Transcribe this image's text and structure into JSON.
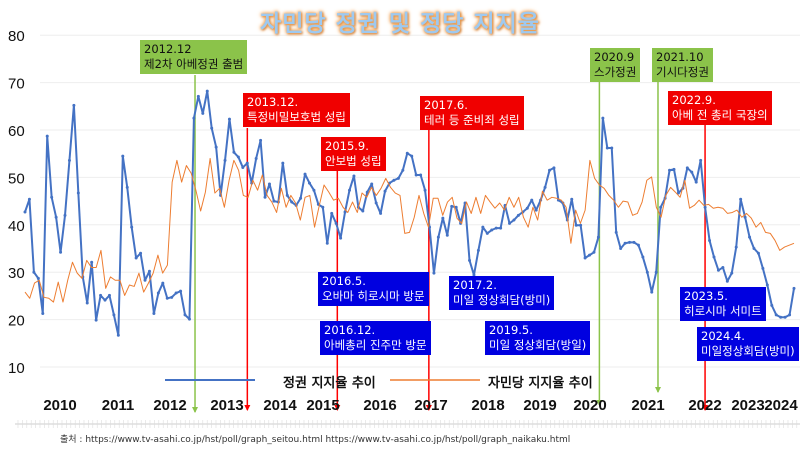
{
  "chart_data": {
    "type": "line",
    "title": "자민당 정권 및 정당 지지율",
    "ylim": [
      10,
      80
    ],
    "yticks": [
      10,
      20,
      30,
      40,
      50,
      60,
      70,
      80
    ],
    "year_labels": [
      "2010",
      "2011",
      "2012",
      "2013",
      "2014",
      "2015",
      "2016",
      "2017",
      "2018",
      "2019",
      "2020",
      "2021",
      "2022",
      "2023",
      "2024"
    ],
    "x_range_years": [
      2009.7,
      2024.4
    ],
    "legend": {
      "position": "bottom",
      "entries": [
        "정권 지지율 추이",
        "자민당 지지율 추이"
      ]
    },
    "grid": true,
    "series": [
      {
        "name": "정권 지지율 추이",
        "color": "#4472c4",
        "values": [
          42.7,
          45.4,
          30,
          28.7,
          21.3,
          58.7,
          45.8,
          41.6,
          34.2,
          42,
          53.6,
          65.2,
          46.7,
          29,
          23.5,
          32.1,
          19.9,
          25.1,
          24.1,
          25.1,
          21,
          16.7,
          54.5,
          47.9,
          39.5,
          33,
          34,
          28.3,
          30.2,
          21.3,
          25.6,
          27.7,
          24.5,
          24.7,
          25.6,
          26,
          21,
          20.1,
          62.5,
          67.1,
          63.5,
          68.2,
          60.4,
          56.4,
          46.2,
          53.6,
          62.3,
          55.3,
          54.3,
          52.1,
          53,
          48.8,
          54,
          57.8,
          45.8,
          48.6,
          45,
          44.8,
          53,
          46.2,
          44.8,
          44.1,
          45.6,
          50.7,
          48.8,
          47.3,
          44.3,
          43.7,
          36.1,
          42.4,
          40.3,
          37.2,
          42.7,
          47.3,
          50.3,
          43.7,
          42.9,
          46.9,
          48.6,
          44.6,
          42.4,
          47.1,
          48.8,
          49.4,
          49.8,
          51.5,
          55.1,
          54.5,
          50.5,
          50.5,
          47.3,
          39.5,
          29.8,
          37.4,
          41.4,
          37.8,
          43.9,
          43.7,
          40.3,
          44.6,
          32.5,
          29.4,
          34.6,
          39.5,
          38.2,
          38.9,
          39.3,
          39.3,
          44.1,
          40.3,
          41,
          42,
          42.7,
          43.5,
          45.2,
          43.1,
          45.2,
          47.9,
          51.5,
          52,
          45.2,
          44.6,
          41,
          45.4,
          39.9,
          39.9,
          33,
          33.6,
          34.2,
          37.4,
          62.5,
          56.2,
          56.2,
          38.4,
          35,
          36.1,
          36.3,
          36.3,
          35.7,
          33.2,
          30,
          25.8,
          30,
          43.7,
          45.6,
          51.5,
          51.7,
          46.7,
          47.7,
          52,
          51.1,
          49,
          53.6,
          43.7,
          36.7,
          33.2,
          30.4,
          31,
          28.1,
          29.8,
          35.3,
          45.4,
          41.6,
          37.4,
          35,
          34,
          30.8,
          27.3,
          23,
          21,
          20.5,
          20.5,
          21,
          26.6
        ]
      },
      {
        "name": "자민당 지지율 추이",
        "color": "#ed7d31",
        "values": [
          25.8,
          24.5,
          27.7,
          28.3,
          24.7,
          24.5,
          23.7,
          27.9,
          23.7,
          28.3,
          32.1,
          29.8,
          28.7,
          32.5,
          31,
          31,
          34.6,
          26.6,
          29,
          28.3,
          28.3,
          25.1,
          27.3,
          27,
          29.8,
          25.8,
          27.7,
          29.8,
          33.6,
          29.8,
          31.5,
          49,
          53.6,
          49,
          52.5,
          50.9,
          47.3,
          42.9,
          46.9,
          54,
          46.7,
          47.7,
          43.7,
          49.4,
          53.6,
          51.5,
          46.2,
          45.8,
          49.4,
          47.3,
          50.5,
          46.2,
          44.8,
          42.6,
          47.7,
          43.7,
          46.2,
          44.6,
          41,
          45.8,
          46.2,
          39.5,
          44.1,
          48.4,
          46.9,
          45.2,
          45.6,
          43.7,
          42.6,
          44.8,
          42.6,
          46.7,
          45.8,
          47.9,
          46.2,
          47.7,
          49.8,
          47.9,
          46.7,
          46.2,
          38.2,
          38.4,
          41.6,
          46.2,
          42.4,
          39.5,
          45.6,
          45.6,
          42,
          44.8,
          45.8,
          41.4,
          40.3,
          44.8,
          42.4,
          45.8,
          42.4,
          46.2,
          44.8,
          43.5,
          44.6,
          43.1,
          45.8,
          43.7,
          45.8,
          41.6,
          39.5,
          43.7,
          41,
          47.1,
          45.2,
          45.8,
          45.6,
          45.2,
          43.7,
          36.1,
          43.1,
          40.3,
          43.1,
          53.6,
          49.8,
          48.4,
          47.7,
          46.2,
          45.2,
          43.7,
          45,
          44.8,
          42,
          42.4,
          44.8,
          49.4,
          50.1,
          43.7,
          41.6,
          46.2,
          47.9,
          46.9,
          45.8,
          49.4,
          43.5,
          44.1,
          45.2,
          44.1,
          44.3,
          43.5,
          43.7,
          43.5,
          42.4,
          42.6,
          43.1,
          41.6,
          42.4,
          41.4,
          39.5,
          40.5,
          38.4,
          38.2,
          36.7,
          34.6,
          35.3,
          35.7,
          36.1
        ]
      }
    ],
    "annotations": {
      "green": [
        {
          "year": 2012.95,
          "date": "2012.12",
          "text": "제2차 아베정권 출범"
        },
        {
          "year": 2020.68,
          "date": "2020.9",
          "text": "스가정권"
        },
        {
          "year": 2021.8,
          "date": "2021.10",
          "text": "기시다정권"
        }
      ],
      "red": [
        {
          "year": 2013.95,
          "date": "2013.12.",
          "text": "특정비밀보호법 성립"
        },
        {
          "year": 2015.67,
          "date": "2015.9.",
          "text": "안보법 성립"
        },
        {
          "year": 2017.42,
          "date": "2017.6.",
          "text": "테러 등 준비죄 성립"
        },
        {
          "year": 2022.7,
          "date": "2022.9.",
          "text": "아베 전 총리 국장의"
        }
      ],
      "blue": [
        {
          "date": "2016.5.",
          "text": "오바마 히로시마 방문"
        },
        {
          "date": "2016.12.",
          "text": "아베총리 진주만 방문"
        },
        {
          "date": "2017.2.",
          "text": "미일 정상회담(방미)"
        },
        {
          "date": "2019.5.",
          "text": "미일 정상회담(방일)"
        },
        {
          "date": "2023.5.",
          "text": "히로시마 서미트"
        },
        {
          "date": "2024.4.",
          "text": "미일정상회담(방미)"
        }
      ]
    }
  },
  "source": "출처 : https://www.tv-asahi.co.jp/hst/poll/graph_seitou.html  https://www.tv-asahi.co.jp/hst/poll/graph_naikaku.html"
}
